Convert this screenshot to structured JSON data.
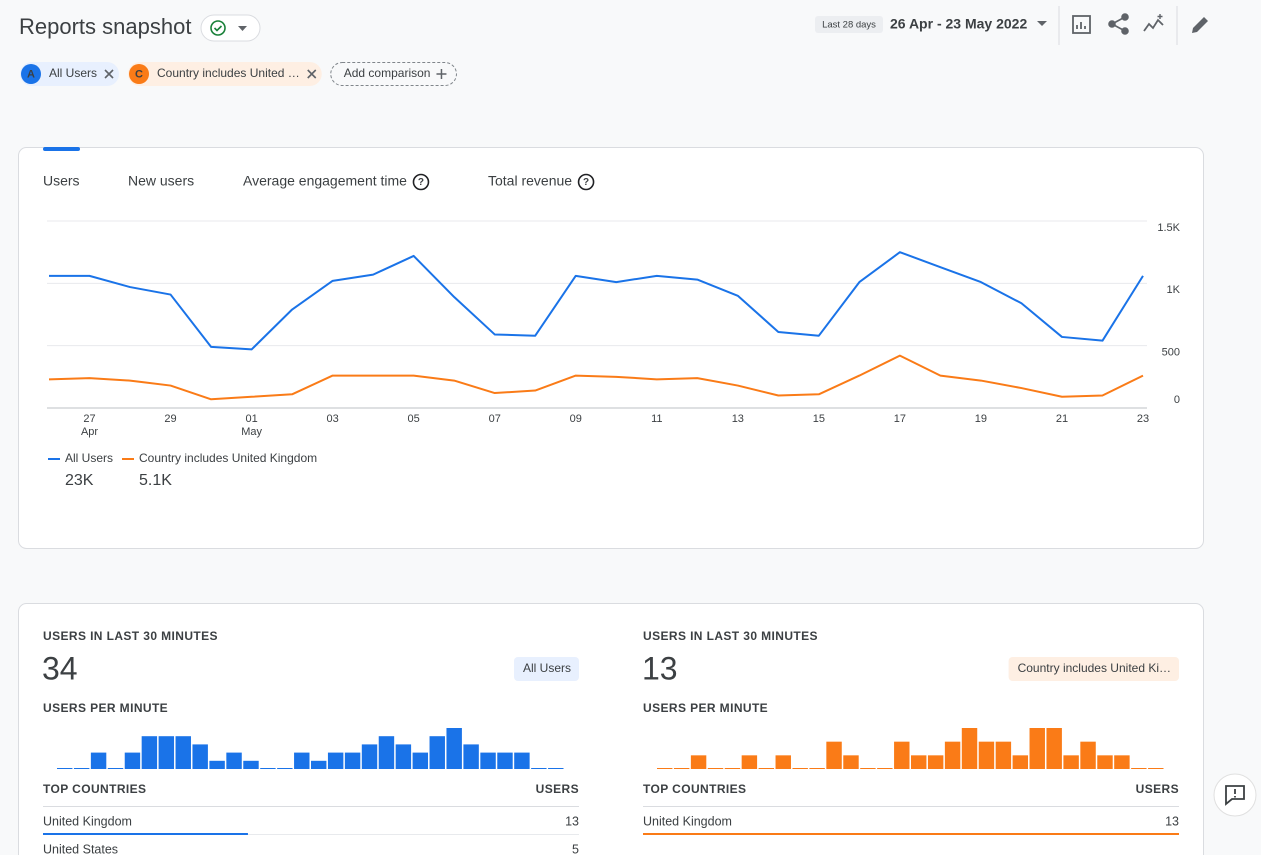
{
  "header": {
    "title": "Reports snapshot",
    "date_range_label": "Last 28 days",
    "date_range": "26 Apr - 23 May 2022"
  },
  "comparisons": [
    {
      "badge": "A",
      "label": "All Users",
      "color": "#1a73e8",
      "background": "#e8f0fe"
    },
    {
      "badge": "C",
      "label": "Country includes United …",
      "color": "#fa7b17",
      "background": "#feefe3"
    }
  ],
  "add_comparison": "Add comparison",
  "tabs": [
    "Users",
    "New users",
    "Average engagement time",
    "Total revenue"
  ],
  "chart_data": [
    {
      "type": "line",
      "categories": [
        null,
        "27",
        null,
        "29",
        null,
        "01",
        null,
        "03",
        null,
        "05",
        null,
        "07",
        null,
        "09",
        null,
        "11",
        null,
        "13",
        null,
        "15",
        null,
        "17",
        null,
        "19",
        null,
        "21",
        null,
        "23"
      ],
      "category_sublabels": [
        null,
        "Apr",
        null,
        null,
        null,
        "May",
        null,
        null,
        null,
        null,
        null,
        null,
        null,
        null,
        null,
        null,
        null,
        null,
        null,
        null,
        null,
        null,
        null,
        null,
        null,
        null,
        null,
        null
      ],
      "ylim": [
        0,
        1500
      ],
      "yticks": [
        0,
        500,
        {
          "value": 1000,
          "label": "1K"
        },
        {
          "value": 1500,
          "label": "1.5K"
        }
      ],
      "grid": true,
      "series": [
        {
          "name": "All Users",
          "color": "#1a73e8",
          "total": "23K",
          "values": [
            1060,
            1060,
            970,
            910,
            490,
            470,
            790,
            1020,
            1070,
            1220,
            890,
            590,
            580,
            1060,
            1010,
            1060,
            1030,
            900,
            610,
            580,
            1010,
            1250,
            1130,
            1010,
            840,
            570,
            540,
            1060
          ]
        },
        {
          "name": "Country includes United Kingdom",
          "color": "#fa7b17",
          "total": "5.1K",
          "values": [
            230,
            240,
            220,
            180,
            70,
            90,
            110,
            260,
            260,
            260,
            220,
            120,
            140,
            260,
            250,
            230,
            240,
            180,
            100,
            110,
            260,
            420,
            260,
            220,
            160,
            90,
            100,
            260
          ]
        }
      ]
    },
    {
      "type": "bar",
      "color": "#1a73e8",
      "values": [
        0,
        0,
        2,
        0,
        2,
        4,
        4,
        4,
        3,
        1,
        2,
        1,
        0,
        0,
        2,
        1,
        2,
        2,
        3,
        4,
        3,
        2,
        4,
        5,
        3,
        2,
        2,
        2,
        0,
        0
      ]
    },
    {
      "type": "bar",
      "color": "#fa7b17",
      "values": [
        0,
        0,
        1,
        0,
        0,
        1,
        0,
        1,
        0,
        0,
        2,
        1,
        0,
        0,
        2,
        1,
        1,
        2,
        3,
        2,
        2,
        1,
        3,
        3,
        1,
        2,
        1,
        1,
        0,
        0
      ]
    }
  ],
  "realtime": [
    {
      "heading": "USERS IN LAST 30 MINUTES",
      "count": 34,
      "segment": "All Users",
      "segment_background": "#e8f0fe",
      "color": "#1a73e8",
      "per_minute_heading": "USERS PER MINUTE",
      "countries_heading": "TOP COUNTRIES",
      "users_heading": "USERS",
      "countries": [
        {
          "name": "United Kingdom",
          "users": 13
        },
        {
          "name": "United States",
          "users": 5
        }
      ]
    },
    {
      "heading": "USERS IN LAST 30 MINUTES",
      "count": 13,
      "segment": "Country includes United Ki…",
      "segment_background": "#feefe3",
      "color": "#fa7b17",
      "per_minute_heading": "USERS PER MINUTE",
      "countries_heading": "TOP COUNTRIES",
      "users_heading": "USERS",
      "countries": [
        {
          "name": "United Kingdom",
          "users": 13
        }
      ]
    }
  ]
}
